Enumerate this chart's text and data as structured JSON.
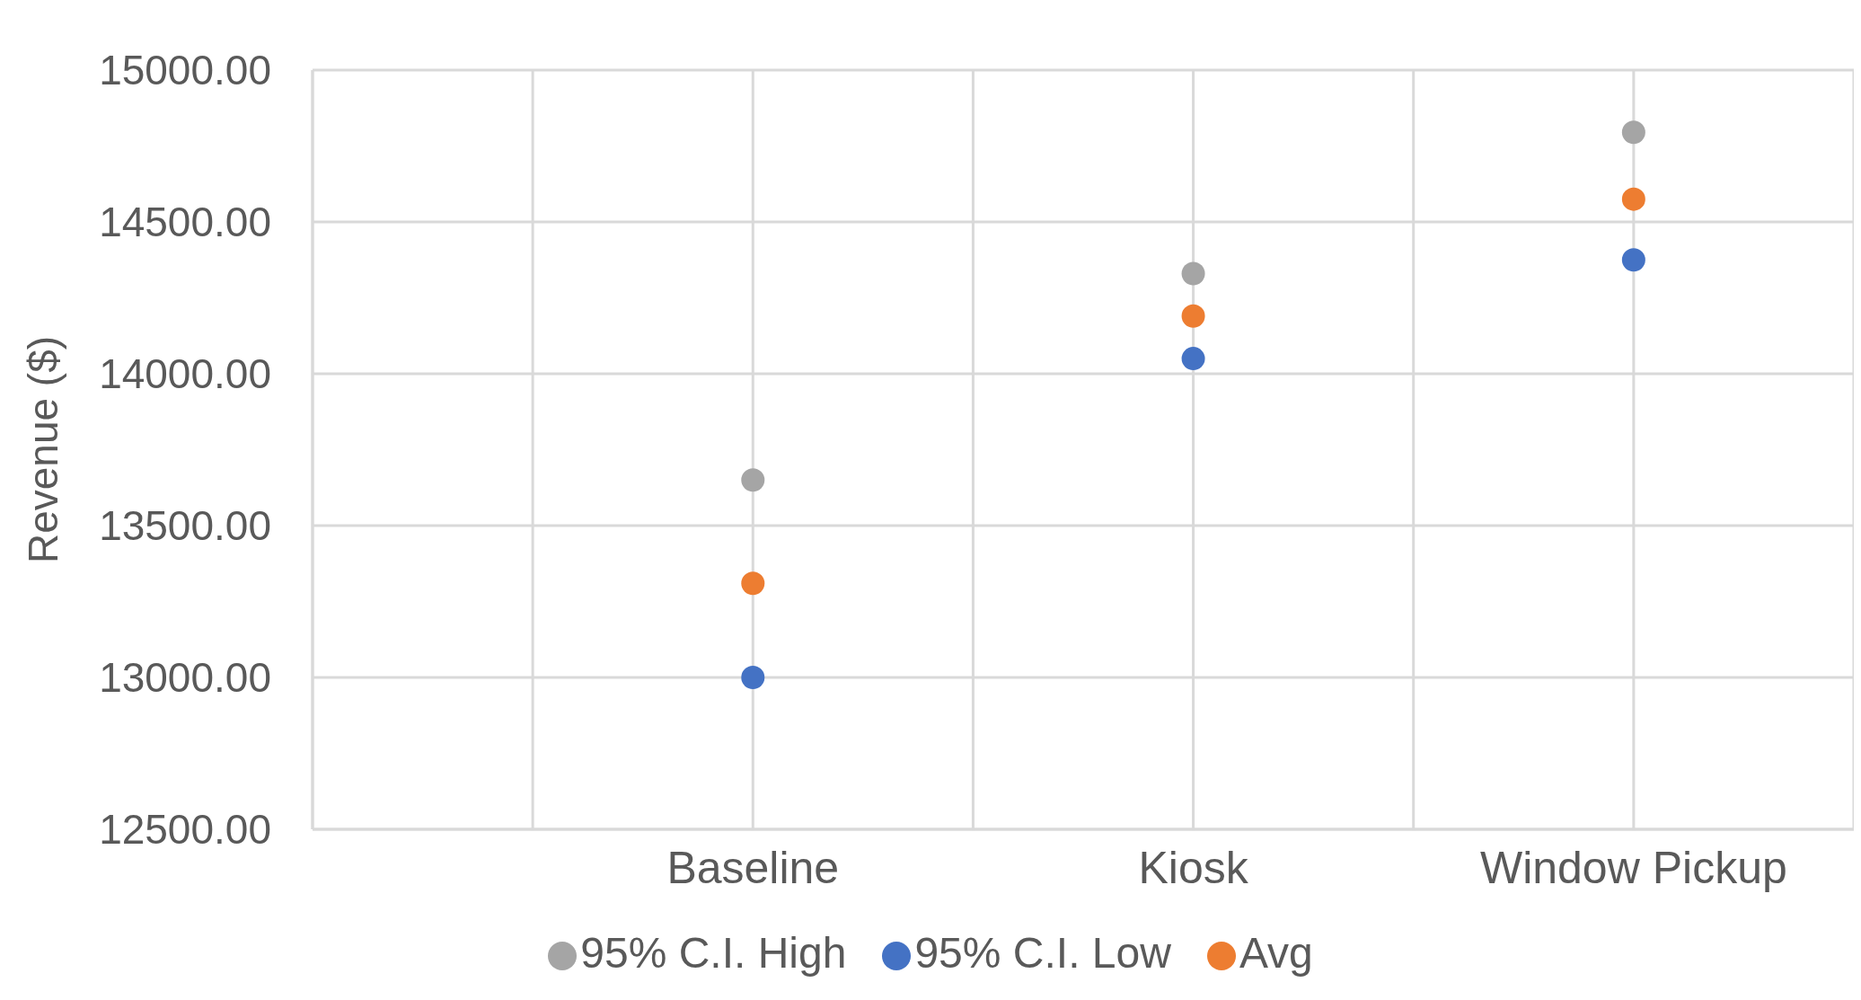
{
  "chart_data": {
    "type": "scatter",
    "ylabel": "Revenue ($)",
    "categories": [
      null,
      null,
      "Baseline",
      null,
      "Kiosk",
      null,
      "Window Pickup",
      null
    ],
    "series": [
      {
        "name": "95% C.I. Low",
        "color": "#4472c4",
        "values": [
          null,
          null,
          13000,
          null,
          14050,
          null,
          14375,
          null
        ]
      },
      {
        "name": "Avg",
        "color": "#ed7d31",
        "values": [
          null,
          null,
          13310,
          null,
          14190,
          null,
          14575,
          null
        ]
      },
      {
        "name": "95% C.I. High",
        "color": "#a5a5a5",
        "values": [
          null,
          null,
          13650,
          null,
          14330,
          null,
          14795,
          null
        ]
      }
    ],
    "ylim": [
      12500,
      15000
    ],
    "yticks": [
      {
        "value": 12500,
        "label": "12500.00"
      },
      {
        "value": 13000,
        "label": "13000.00"
      },
      {
        "value": 13500,
        "label": "13500.00"
      },
      {
        "value": 14000,
        "label": "14000.00"
      },
      {
        "value": 14500,
        "label": "14500.00"
      },
      {
        "value": 15000,
        "label": "15000.00"
      }
    ],
    "grid": true,
    "legend": "bottom",
    "marker": "circle"
  }
}
